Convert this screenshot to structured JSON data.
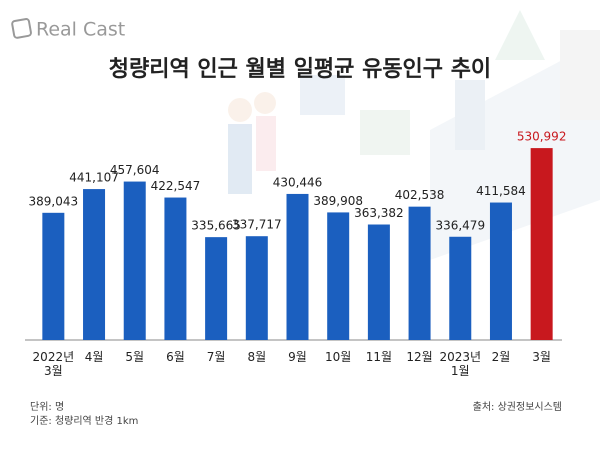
{
  "logo": "Real Cast",
  "chart_data": {
    "type": "bar",
    "title": "청량리역 인근 월별 일평균 유동인구 추이",
    "categories": [
      "2022년\n3월",
      "4월",
      "5월",
      "6월",
      "7월",
      "8월",
      "9월",
      "10월",
      "11월",
      "12월",
      "2023년\n1월",
      "2월",
      "3월"
    ],
    "values": [
      389043,
      441107,
      457604,
      422547,
      335665,
      337717,
      430446,
      389908,
      363382,
      402538,
      336479,
      411584,
      530992
    ],
    "value_labels": [
      "389,043",
      "441,107",
      "457,604",
      "422,547",
      "335,665",
      "337,717",
      "430,446",
      "389,908",
      "363,382",
      "402,538",
      "336,479",
      "411,584",
      "530,992"
    ],
    "colors": [
      "#1b5fbf",
      "#1b5fbf",
      "#1b5fbf",
      "#1b5fbf",
      "#1b5fbf",
      "#1b5fbf",
      "#1b5fbf",
      "#1b5fbf",
      "#1b5fbf",
      "#1b5fbf",
      "#1b5fbf",
      "#1b5fbf",
      "#c8181e"
    ],
    "label_colors": [
      "#222222",
      "#222222",
      "#222222",
      "#222222",
      "#222222",
      "#222222",
      "#222222",
      "#222222",
      "#222222",
      "#222222",
      "#222222",
      "#222222",
      "#c8181e"
    ],
    "ylim": [
      110000,
      540000
    ],
    "unit_note": "단위: 명",
    "basis_note": "기준: 청량리역 반경 1km",
    "source": "출처: 상권정보시스템"
  }
}
